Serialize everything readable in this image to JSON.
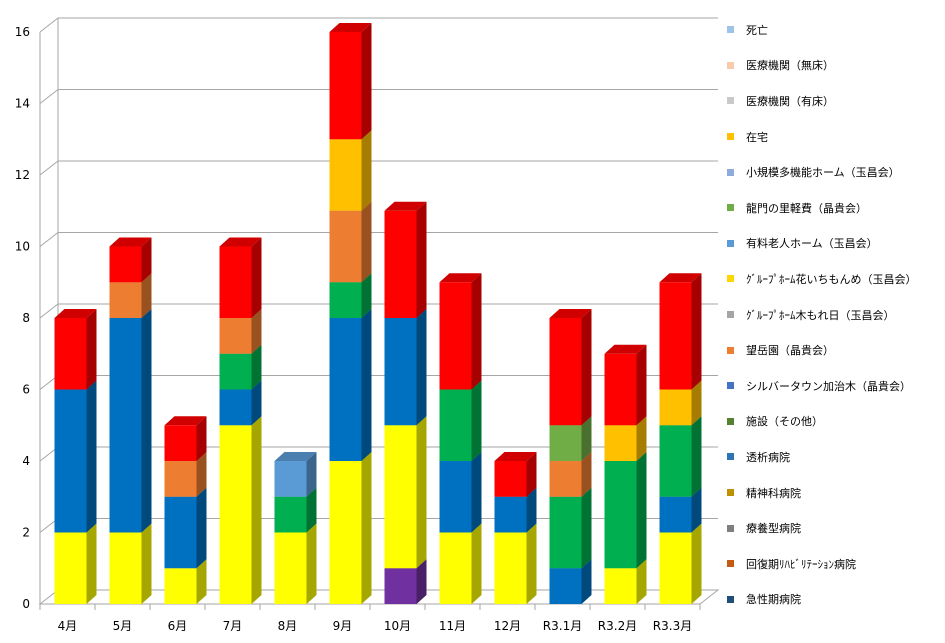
{
  "chart_data": {
    "type": "bar",
    "stacked": true,
    "three_d": true,
    "title": "",
    "xlabel": "",
    "ylabel": "",
    "ylim": [
      0,
      16
    ],
    "yticks": [
      0,
      2,
      4,
      6,
      8,
      10,
      12,
      14,
      16
    ],
    "grid": true,
    "legend_position": "right",
    "categories": [
      "4月",
      "5月",
      "6月",
      "7月",
      "8月",
      "9月",
      "10月",
      "11月",
      "12月",
      "R3.1月",
      "R3.2月",
      "R3.3月"
    ],
    "series": [
      {
        "name": "急性期病院",
        "color": "#1F4E79",
        "values": [
          0,
          0,
          0,
          0,
          0,
          0,
          0,
          0,
          0,
          0,
          0,
          0
        ]
      },
      {
        "name": "回復期ﾘﾊﾋﾞﾘﾃｰｼｮﾝ病院",
        "color": "#C55A11",
        "values": [
          0,
          0,
          0,
          0,
          0,
          0,
          0,
          0,
          0,
          0,
          0,
          0
        ]
      },
      {
        "name": "療養型病院",
        "color": "#7F7F7F",
        "values": [
          0,
          0,
          0,
          0,
          0,
          0,
          0,
          0,
          0,
          0,
          0,
          0
        ]
      },
      {
        "name": "精神科病院",
        "color": "#BF9000",
        "values": [
          0,
          0,
          0,
          0,
          0,
          0,
          0,
          0,
          0,
          0,
          0,
          0
        ]
      },
      {
        "name": "透析病院",
        "color": "#2E75B6",
        "values": [
          0,
          0,
          0,
          0,
          0,
          0,
          0,
          0,
          0,
          0,
          0,
          0
        ]
      },
      {
        "name": "施設（その他）",
        "color": "#7030A0",
        "values": [
          0,
          0,
          0,
          0,
          0,
          0,
          1,
          0,
          0,
          0,
          0,
          0
        ]
      },
      {
        "name": "シルバータウン加治木（晶貴会）",
        "color": "#0070C0",
        "values": [
          0,
          0,
          0,
          0,
          0,
          0,
          0,
          0,
          0,
          1,
          0,
          0
        ]
      },
      {
        "name": "望岳園（晶貴会）",
        "color": "#FFFF00",
        "values": [
          2,
          2,
          1,
          5,
          2,
          4,
          4,
          2,
          2,
          0,
          1,
          2
        ]
      },
      {
        "name": "ｸﾞﾙｰﾌﾟﾎｰﾑ木もれ日（玉昌会）",
        "color": "#00B050",
        "values": [
          0,
          0,
          0,
          0,
          1,
          0,
          0,
          0,
          0,
          2,
          3,
          0
        ]
      },
      {
        "name": "ｸﾞﾙｰﾌﾟﾎｰﾑ花いちもんめ（玉昌会）",
        "color": "#0070C0",
        "values": [
          4,
          6,
          2,
          1,
          0,
          4,
          3,
          2,
          1,
          0,
          0,
          1
        ]
      },
      {
        "name": "有料老人ホーム（玉昌会）",
        "color": "#00B050",
        "values": [
          0,
          0,
          0,
          1,
          0,
          1,
          0,
          2,
          0,
          0,
          0,
          2
        ]
      },
      {
        "name": "龍門の里軽費（晶貴会）",
        "color": "#5B9BD5",
        "values": [
          0,
          0,
          0,
          0,
          1,
          0,
          0,
          0,
          0,
          0,
          0,
          0
        ]
      },
      {
        "name": "小規模多機能ホーム（玉昌会）",
        "color": "#ED7D31",
        "values": [
          0,
          1,
          1,
          1,
          0,
          2,
          0,
          0,
          0,
          1,
          0,
          0
        ]
      },
      {
        "name": "在宅",
        "color": "#70AD47",
        "values": [
          0,
          0,
          0,
          0,
          0,
          0,
          0,
          0,
          0,
          1,
          0,
          0
        ]
      },
      {
        "name": "医療機関（有床）",
        "color": "#FFC000",
        "values": [
          0,
          0,
          0,
          0,
          0,
          2,
          0,
          0,
          0,
          0,
          1,
          1
        ]
      },
      {
        "name": "医療機関（無床）",
        "color": "#FF0000",
        "values": [
          2,
          1,
          1,
          2,
          0,
          3,
          3,
          3,
          1,
          3,
          2,
          3
        ]
      },
      {
        "name": "死亡",
        "color": "#FF0000",
        "values": [
          0,
          0,
          0,
          0,
          0,
          0,
          0,
          0,
          0,
          0,
          0,
          0
        ]
      }
    ],
    "legend_entries": [
      {
        "label": "死亡",
        "color": "#9DC3E6"
      },
      {
        "label": "医療機関（無床）",
        "color": "#F8CBAD"
      },
      {
        "label": "医療機関（有床）",
        "color": "#C9C9C9"
      },
      {
        "label": "在宅",
        "color": "#FFC000"
      },
      {
        "label": "小規模多機能ホーム（玉昌会）",
        "color": "#8FAADC"
      },
      {
        "label": "龍門の里軽費（晶貴会）",
        "color": "#70AD47"
      },
      {
        "label": "有料老人ホーム（玉昌会）",
        "color": "#5B9BD5"
      },
      {
        "label": "ｸﾞﾙｰﾌﾟﾎｰﾑ花いちもんめ（玉昌会）",
        "color": "#FFD700"
      },
      {
        "label": "ｸﾞﾙｰﾌﾟﾎｰﾑ木もれ日（玉昌会）",
        "color": "#A5A5A5"
      },
      {
        "label": "望岳園（晶貴会）",
        "color": "#ED7D31"
      },
      {
        "label": "シルバータウン加治木（晶貴会）",
        "color": "#4472C4"
      },
      {
        "label": "施設（その他）",
        "color": "#548235"
      },
      {
        "label": "透析病院",
        "color": "#2E75B6"
      },
      {
        "label": "精神科病院",
        "color": "#BF9000"
      },
      {
        "label": "療養型病院",
        "color": "#7F7F7F"
      },
      {
        "label": "回復期ﾘﾊﾋﾞﾘﾃｰｼｮﾝ病院",
        "color": "#C55A11"
      },
      {
        "label": "急性期病院",
        "color": "#1F4E79"
      }
    ]
  }
}
